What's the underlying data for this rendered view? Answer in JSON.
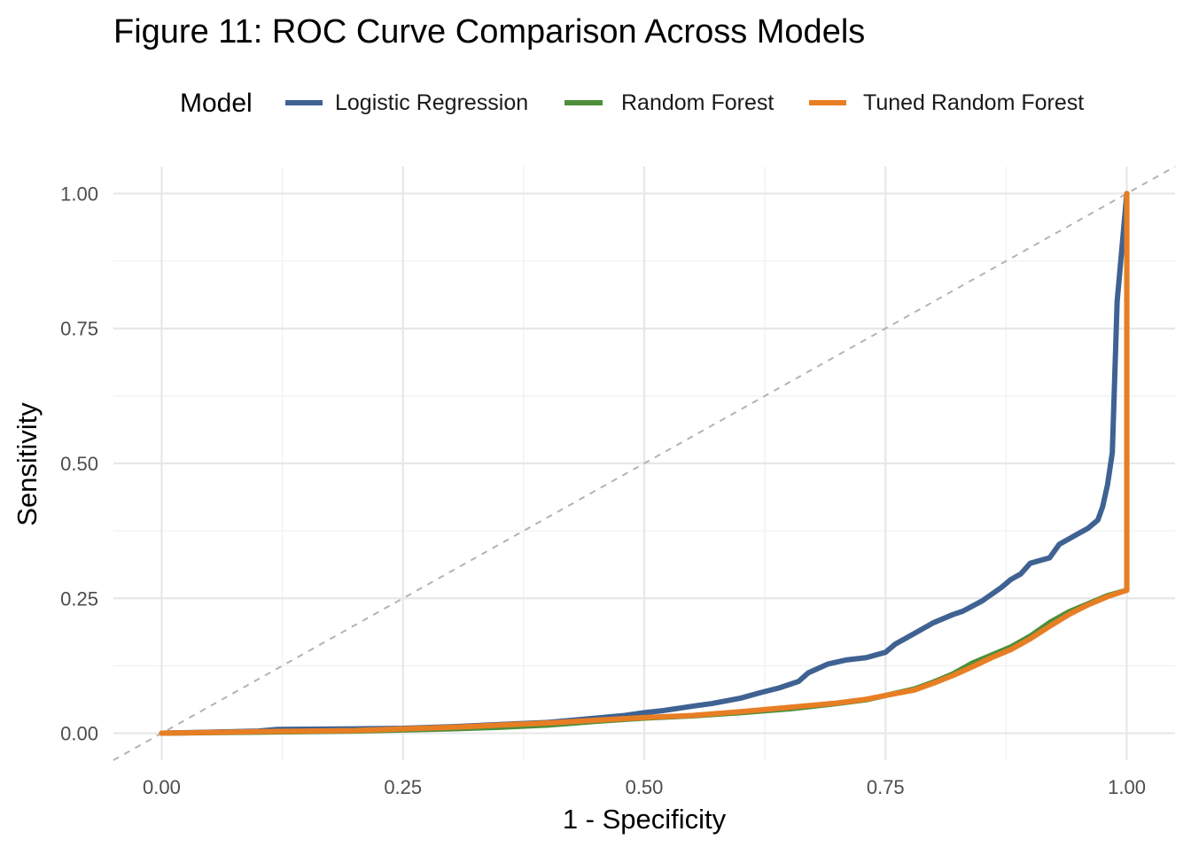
{
  "chart_data": {
    "type": "line",
    "title": "Figure 11: ROC Curve Comparison Across Models",
    "xlabel": "1 - Specificity",
    "ylabel": "Sensitivity",
    "xlim": [
      -0.05,
      1.05
    ],
    "ylim": [
      -0.05,
      1.05
    ],
    "xticks": [
      0,
      0.25,
      0.5,
      0.75,
      1
    ],
    "yticks": [
      0,
      0.25,
      0.5,
      0.75,
      1
    ],
    "xtick_labels": [
      "0.00",
      "0.25",
      "0.50",
      "0.75",
      "1.00"
    ],
    "ytick_labels": [
      "0.00",
      "0.25",
      "0.50",
      "0.75",
      "1.00"
    ],
    "grid": true,
    "legend": {
      "title": "Model",
      "position": "top"
    },
    "reference_line": {
      "x": [
        -0.05,
        1.05
      ],
      "y": [
        -0.05,
        1.05
      ],
      "style": "dashed",
      "color": "#b3b3b3"
    },
    "series": [
      {
        "name": "Logistic Regression",
        "color": "#3f6292",
        "x": [
          0.0,
          0.05,
          0.1,
          0.12,
          0.2,
          0.25,
          0.3,
          0.35,
          0.4,
          0.45,
          0.48,
          0.5,
          0.52,
          0.55,
          0.57,
          0.6,
          0.62,
          0.64,
          0.66,
          0.67,
          0.69,
          0.71,
          0.73,
          0.75,
          0.76,
          0.78,
          0.8,
          0.82,
          0.83,
          0.85,
          0.87,
          0.88,
          0.89,
          0.9,
          0.92,
          0.93,
          0.95,
          0.96,
          0.97,
          0.975,
          0.98,
          0.985,
          0.99,
          0.995,
          1.0
        ],
        "y": [
          0.0,
          0.002,
          0.004,
          0.007,
          0.008,
          0.009,
          0.012,
          0.016,
          0.02,
          0.028,
          0.033,
          0.038,
          0.042,
          0.05,
          0.055,
          0.065,
          0.075,
          0.084,
          0.096,
          0.112,
          0.128,
          0.136,
          0.14,
          0.15,
          0.165,
          0.185,
          0.205,
          0.22,
          0.226,
          0.245,
          0.27,
          0.285,
          0.295,
          0.315,
          0.325,
          0.35,
          0.37,
          0.38,
          0.395,
          0.42,
          0.46,
          0.52,
          0.8,
          0.9,
          1.0
        ]
      },
      {
        "name": "Random Forest",
        "color": "#4e8f3a",
        "x": [
          0.0,
          0.1,
          0.2,
          0.25,
          0.3,
          0.35,
          0.4,
          0.45,
          0.5,
          0.55,
          0.6,
          0.65,
          0.7,
          0.73,
          0.75,
          0.78,
          0.8,
          0.82,
          0.84,
          0.86,
          0.88,
          0.9,
          0.92,
          0.94,
          0.96,
          0.98,
          1.0,
          1.0
        ],
        "y": [
          0.0,
          0.002,
          0.004,
          0.006,
          0.008,
          0.011,
          0.015,
          0.022,
          0.028,
          0.032,
          0.038,
          0.045,
          0.055,
          0.062,
          0.07,
          0.082,
          0.095,
          0.11,
          0.13,
          0.145,
          0.16,
          0.18,
          0.205,
          0.225,
          0.24,
          0.255,
          0.265,
          1.0
        ]
      },
      {
        "name": "Tuned Random Forest",
        "color": "#e87e24",
        "x": [
          0.0,
          0.1,
          0.2,
          0.25,
          0.3,
          0.35,
          0.4,
          0.45,
          0.5,
          0.55,
          0.6,
          0.65,
          0.7,
          0.73,
          0.75,
          0.78,
          0.8,
          0.82,
          0.84,
          0.86,
          0.88,
          0.9,
          0.92,
          0.94,
          0.96,
          0.98,
          1.0,
          1.0
        ],
        "y": [
          0.0,
          0.003,
          0.005,
          0.008,
          0.011,
          0.015,
          0.019,
          0.024,
          0.029,
          0.033,
          0.04,
          0.048,
          0.056,
          0.063,
          0.07,
          0.08,
          0.093,
          0.107,
          0.123,
          0.14,
          0.155,
          0.175,
          0.198,
          0.22,
          0.238,
          0.253,
          0.265,
          1.0
        ]
      }
    ]
  }
}
